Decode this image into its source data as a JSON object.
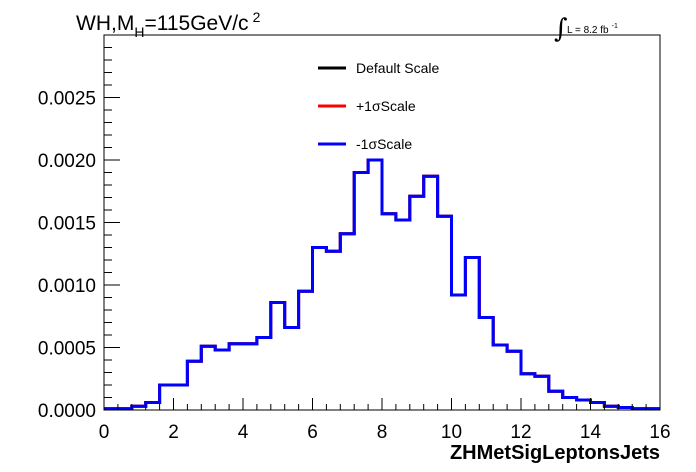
{
  "chart_data": {
    "type": "line",
    "style": "step-histogram",
    "title": "WH,M",
    "title_subscript": "H",
    "title_suffix": "=115GeV/c",
    "title_superscript": "2",
    "lumi_integral": "∫",
    "lumi_text": "L = 8.2 fb",
    "lumi_superscript": "-1",
    "xlabel": "ZHMetSigLeptonsJets",
    "ylabel": "",
    "xlim": [
      0,
      16
    ],
    "ylim": [
      0,
      0.003
    ],
    "x_ticks": [
      "0",
      "2",
      "4",
      "6",
      "8",
      "10",
      "12",
      "14",
      "16"
    ],
    "y_ticks": [
      "0.0000",
      "0.0005",
      "0.0010",
      "0.0015",
      "0.0020",
      "0.0025"
    ],
    "grid": false,
    "legend_position": "top-center",
    "bin_edges": [
      0,
      0.4,
      0.8,
      1.2,
      1.6,
      2.0,
      2.4,
      2.8,
      3.2,
      3.6,
      4.0,
      4.4,
      4.8,
      5.2,
      5.6,
      6.0,
      6.4,
      6.8,
      7.2,
      7.6,
      8.0,
      8.4,
      8.8,
      9.2,
      9.6,
      10.0,
      10.4,
      10.8,
      11.2,
      11.6,
      12.0,
      12.4,
      12.8,
      13.2,
      13.6,
      14.0,
      14.4,
      14.8,
      15.2,
      15.6,
      16.0
    ],
    "series": [
      {
        "name": "Default Scale",
        "color": "#000000",
        "values": [
          1e-05,
          1e-05,
          3e-05,
          6e-05,
          0.0002,
          0.0002,
          0.00039,
          0.00051,
          0.00048,
          0.00053,
          0.00053,
          0.00058,
          0.00086,
          0.00066,
          0.00095,
          0.0013,
          0.00127,
          0.00141,
          0.0019,
          0.002,
          0.00157,
          0.00152,
          0.00171,
          0.00187,
          0.00155,
          0.00092,
          0.00122,
          0.00074,
          0.00052,
          0.00047,
          0.00029,
          0.00027,
          0.00015,
          0.0001,
          8e-05,
          6e-05,
          3e-05,
          2e-05,
          1e-05,
          1e-05
        ]
      },
      {
        "name": "+1σScale",
        "color": "#ff0000",
        "values": [
          1e-05,
          1e-05,
          3e-05,
          6e-05,
          0.0002,
          0.0002,
          0.00039,
          0.00051,
          0.00048,
          0.00053,
          0.00053,
          0.00058,
          0.00086,
          0.00066,
          0.00095,
          0.0013,
          0.00127,
          0.00141,
          0.0019,
          0.002,
          0.00157,
          0.00152,
          0.00171,
          0.00187,
          0.00155,
          0.00092,
          0.00122,
          0.00074,
          0.00052,
          0.00047,
          0.00029,
          0.00027,
          0.00015,
          0.0001,
          8e-05,
          6e-05,
          3e-05,
          2e-05,
          1e-05,
          1e-05
        ]
      },
      {
        "name": "-1σScale",
        "color": "#0000ff",
        "values": [
          1e-05,
          1e-05,
          3e-05,
          6e-05,
          0.0002,
          0.0002,
          0.00039,
          0.00051,
          0.00048,
          0.00053,
          0.00053,
          0.00058,
          0.00086,
          0.00066,
          0.00095,
          0.0013,
          0.00127,
          0.00141,
          0.0019,
          0.002,
          0.00157,
          0.00152,
          0.00171,
          0.00187,
          0.00155,
          0.00092,
          0.00122,
          0.00074,
          0.00052,
          0.00047,
          0.00029,
          0.00027,
          0.00015,
          0.0001,
          8e-05,
          6e-05,
          3e-05,
          2e-05,
          1e-05,
          1e-05
        ]
      }
    ]
  }
}
